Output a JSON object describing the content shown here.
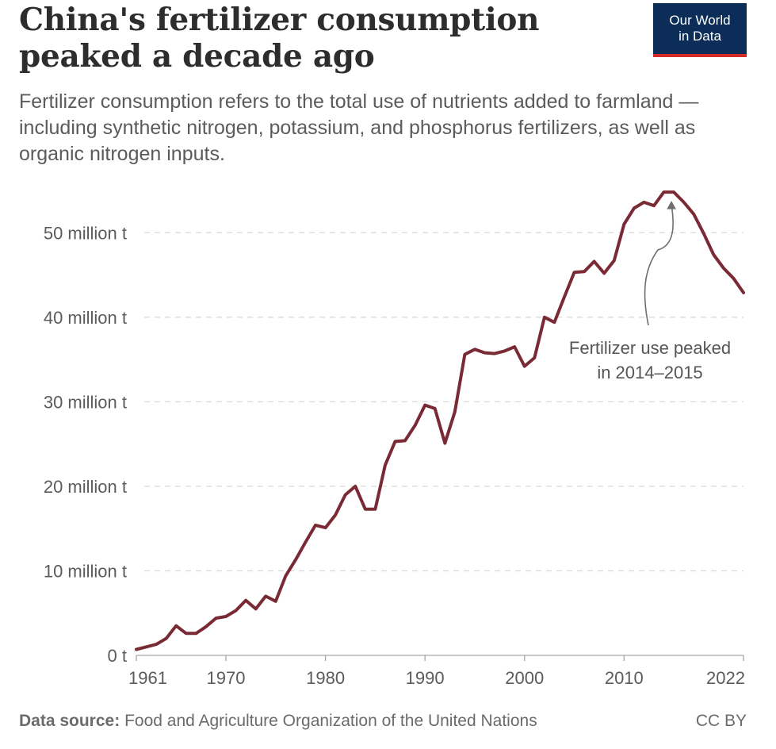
{
  "header": {
    "title": "China's fertilizer consumption peaked a decade ago",
    "subtitle": "Fertilizer consumption refers to the total use of nutrients added to farmland — including synthetic nitrogen, potassium, and phosphorus fertilizers, as well as organic nitrogen inputs.",
    "logo_line1": "Our World",
    "logo_line2": "in Data"
  },
  "footer": {
    "source_label": "Data source:",
    "source_text": "Food and Agriculture Organization of the United Nations",
    "license": "CC BY"
  },
  "colors": {
    "line": "#7a2a34",
    "grid": "#d9d9d9",
    "logo_bg": "#0b2d58",
    "logo_accent": "#d42a2a"
  },
  "chart_data": {
    "type": "line",
    "title": "China's fertilizer consumption peaked a decade ago",
    "xlabel": "",
    "ylabel": "",
    "xlim": [
      1961,
      2022
    ],
    "ylim": [
      0,
      55
    ],
    "grid": true,
    "y_ticks": [
      0,
      10,
      20,
      30,
      40,
      50
    ],
    "y_tick_labels": [
      "0 t",
      "10 million t",
      "20 million t",
      "30 million t",
      "40 million t",
      "50 million t"
    ],
    "x_ticks": [
      1961,
      1970,
      1980,
      1990,
      2000,
      2010,
      2022
    ],
    "x_tick_labels": [
      "1961",
      "1970",
      "1980",
      "1990",
      "2000",
      "2010",
      "2022"
    ],
    "annotation": {
      "lines": [
        "Fertilizer use peaked",
        "in 2014–2015"
      ],
      "x": 2015,
      "y": 54.8
    },
    "series": [
      {
        "x": [
          1961,
          1962,
          1963,
          1964,
          1965,
          1966,
          1967,
          1968,
          1969,
          1970,
          1971,
          1972,
          1973,
          1974,
          1975,
          1976,
          1977,
          1978,
          1979,
          1980,
          1981,
          1982,
          1983,
          1984,
          1985,
          1986,
          1987,
          1988,
          1989,
          1990,
          1991,
          1992,
          1993,
          1994,
          1995,
          1996,
          1997,
          1998,
          1999,
          2000,
          2001,
          2002,
          2003,
          2004,
          2005,
          2006,
          2007,
          2008,
          2009,
          2010,
          2011,
          2012,
          2013,
          2014,
          2015,
          2016,
          2017,
          2018,
          2019,
          2020,
          2021,
          2022
        ],
        "values": [
          0.7,
          1.0,
          1.3,
          2.0,
          3.5,
          2.6,
          2.6,
          3.4,
          4.4,
          4.6,
          5.3,
          6.5,
          5.5,
          7.0,
          6.4,
          9.4,
          11.3,
          13.4,
          15.4,
          15.1,
          16.6,
          19.0,
          20.0,
          17.3,
          17.3,
          22.5,
          25.3,
          25.4,
          27.2,
          29.6,
          29.2,
          25.1,
          28.8,
          35.6,
          36.2,
          35.8,
          35.7,
          36.0,
          36.5,
          34.2,
          35.2,
          40.0,
          39.4,
          42.4,
          45.3,
          45.4,
          46.6,
          45.2,
          46.7,
          51.0,
          52.9,
          53.6,
          53.2,
          54.8,
          54.8,
          53.6,
          52.2,
          49.9,
          47.4,
          45.8,
          44.6,
          42.9
        ]
      }
    ]
  }
}
